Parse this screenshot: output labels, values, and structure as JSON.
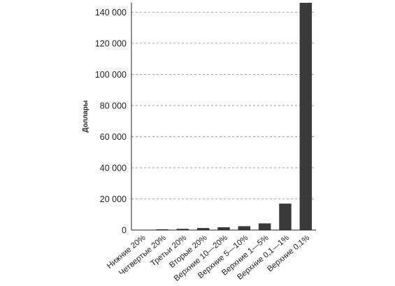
{
  "chart_data": {
    "type": "bar",
    "title": "",
    "xlabel": "",
    "ylabel": "Доллары",
    "ylim": [
      0,
      146000
    ],
    "yticks": [
      0,
      20000,
      40000,
      60000,
      80000,
      100000,
      120000,
      140000
    ],
    "ytick_labels": [
      "0",
      "20 000",
      "40 000",
      "60 000",
      "80 000",
      "100 000",
      "120 000",
      "140 000"
    ],
    "categories": [
      "Нижние 20%",
      "Четвертые 20%",
      "Третьи 20%",
      "Вторые 20%",
      "Верхние 10—20%",
      "Верхние 5—10%",
      "Верхние 1—5%",
      "Верхние 0,1—1%",
      "Верхние 0,1%"
    ],
    "values": [
      200,
      500,
      800,
      1300,
      1800,
      2500,
      4300,
      17000,
      146000
    ],
    "bar_color": "#3a3a3a",
    "grid": true,
    "legend": "none"
  }
}
